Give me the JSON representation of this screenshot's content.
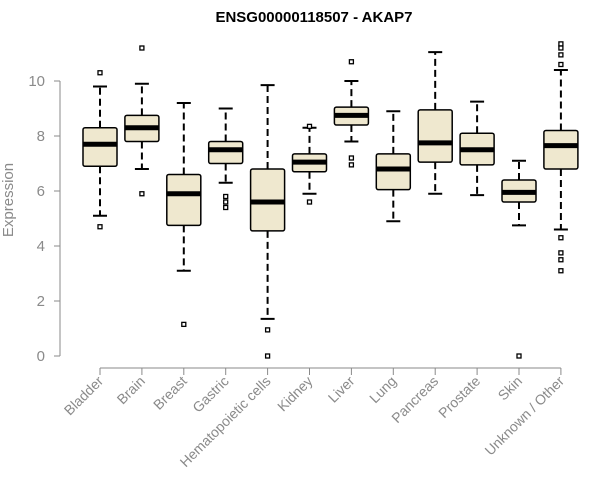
{
  "chart_data": {
    "type": "box",
    "title": "ENSG00000118507 - AKAP7",
    "xlabel": "",
    "ylabel": "Expression",
    "ylim": [
      0,
      11.5
    ],
    "yticks": [
      "0",
      "2",
      "4",
      "6",
      "8",
      "10"
    ],
    "box_fill": "#efe8cf",
    "box_stroke": "#000000",
    "categories": [
      "Bladder",
      "Brain",
      "Breast",
      "Gastric",
      "Hematopoietic cells",
      "Kidney",
      "Liver",
      "Lung",
      "Pancreas",
      "Prostate",
      "Skin",
      "Unknown / Other"
    ],
    "boxes": [
      {
        "whisker_low": 5.1,
        "q1": 6.9,
        "median": 7.7,
        "q3": 8.3,
        "whisker_high": 9.8,
        "outliers": [
          4.7,
          10.3
        ]
      },
      {
        "whisker_low": 6.8,
        "q1": 7.8,
        "median": 8.3,
        "q3": 8.75,
        "whisker_high": 9.9,
        "outliers": [
          5.9,
          11.2
        ]
      },
      {
        "whisker_low": 3.1,
        "q1": 4.75,
        "median": 5.9,
        "q3": 6.6,
        "whisker_high": 9.2,
        "outliers": [
          1.15
        ]
      },
      {
        "whisker_low": 6.3,
        "q1": 7.0,
        "median": 7.5,
        "q3": 7.8,
        "whisker_high": 9.0,
        "outliers": [
          5.4,
          5.6,
          5.8
        ]
      },
      {
        "whisker_low": 1.35,
        "q1": 4.55,
        "median": 5.6,
        "q3": 6.8,
        "whisker_high": 9.85,
        "outliers": [
          0.95,
          0.0
        ]
      },
      {
        "whisker_low": 5.9,
        "q1": 6.7,
        "median": 7.05,
        "q3": 7.35,
        "whisker_high": 8.3,
        "outliers": [
          5.6,
          8.35
        ]
      },
      {
        "whisker_low": 7.8,
        "q1": 8.4,
        "median": 8.75,
        "q3": 9.05,
        "whisker_high": 10.0,
        "outliers": [
          6.95,
          7.2,
          10.7
        ]
      },
      {
        "whisker_low": 4.9,
        "q1": 6.05,
        "median": 6.8,
        "q3": 7.35,
        "whisker_high": 8.9,
        "outliers": []
      },
      {
        "whisker_low": 5.9,
        "q1": 7.05,
        "median": 7.75,
        "q3": 8.95,
        "whisker_high": 11.05,
        "outliers": []
      },
      {
        "whisker_low": 5.85,
        "q1": 6.95,
        "median": 7.5,
        "q3": 8.1,
        "whisker_high": 9.25,
        "outliers": []
      },
      {
        "whisker_low": 4.75,
        "q1": 5.6,
        "median": 5.95,
        "q3": 6.4,
        "whisker_high": 7.1,
        "outliers": [
          0.0
        ]
      },
      {
        "whisker_low": 4.6,
        "q1": 6.8,
        "median": 7.65,
        "q3": 8.2,
        "whisker_high": 10.4,
        "outliers": [
          3.1,
          3.5,
          3.75,
          4.3,
          10.6,
          10.95,
          11.2,
          11.35
        ]
      }
    ]
  }
}
